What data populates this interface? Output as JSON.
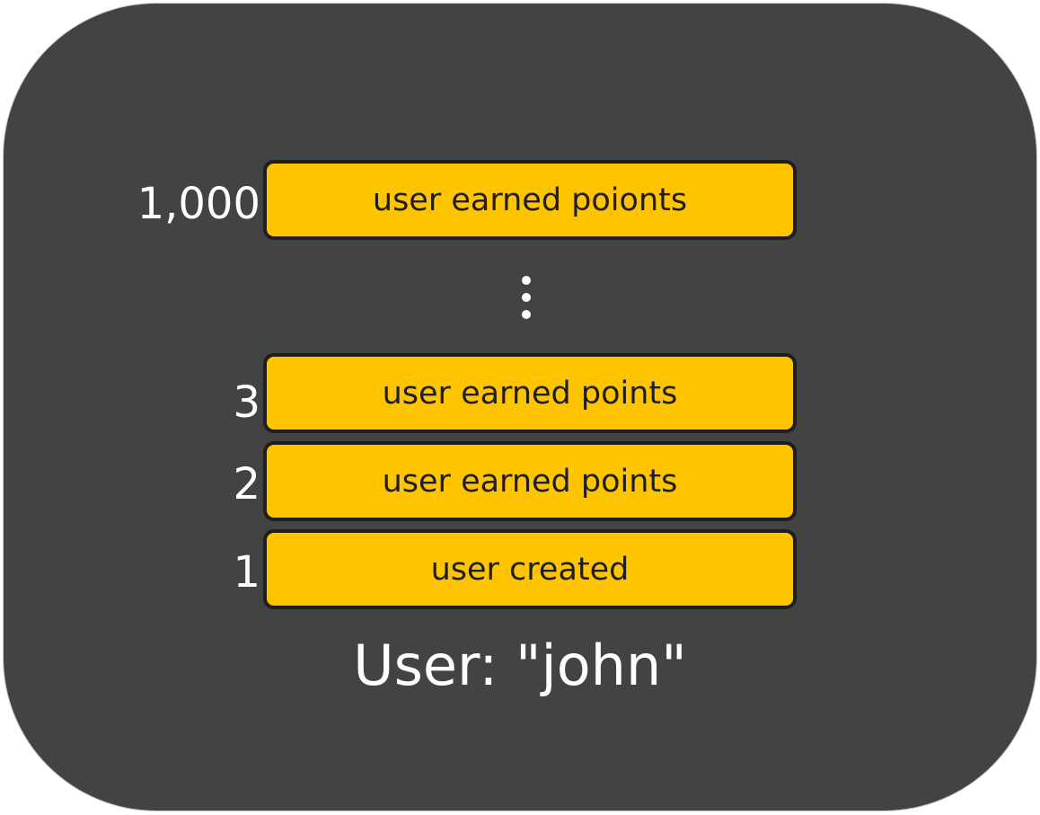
{
  "user": {
    "label": "User: \"john\""
  },
  "events": [
    {
      "seq": "1,000",
      "label": "user earned poionts"
    },
    {
      "seq": "3",
      "label": "user earned points"
    },
    {
      "seq": "2",
      "label": "user earned points"
    },
    {
      "seq": "1",
      "label": "user created"
    }
  ],
  "colors": {
    "panel": "#434343",
    "event_fill": "#ffc400",
    "event_border": "#1e1e1e",
    "text_light": "#ffffff",
    "text_dark": "#1e1e1e"
  },
  "icons": {
    "gap": "vertical-ellipsis-icon"
  }
}
